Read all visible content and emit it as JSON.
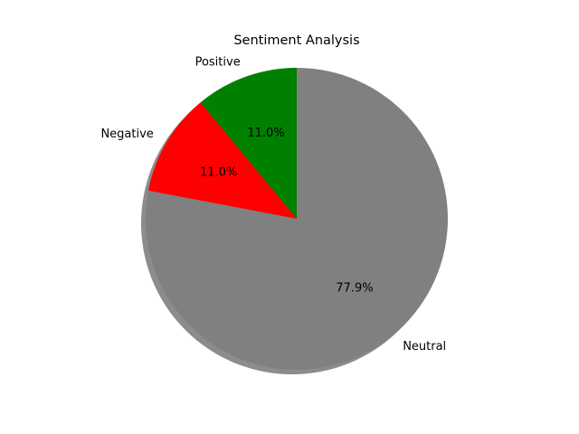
{
  "chart_data": {
    "type": "pie",
    "title": "Sentiment Analysis",
    "categories": [
      "Positive",
      "Negative",
      "Neutral"
    ],
    "values": [
      11.0,
      11.0,
      77.9
    ],
    "value_labels": [
      "11.0%",
      "11.0%",
      "77.9%"
    ],
    "colors": [
      "#008000",
      "#ff0000",
      "#808080"
    ],
    "start_angle_deg": 90,
    "direction": "counterclockwise",
    "shadow": true
  }
}
